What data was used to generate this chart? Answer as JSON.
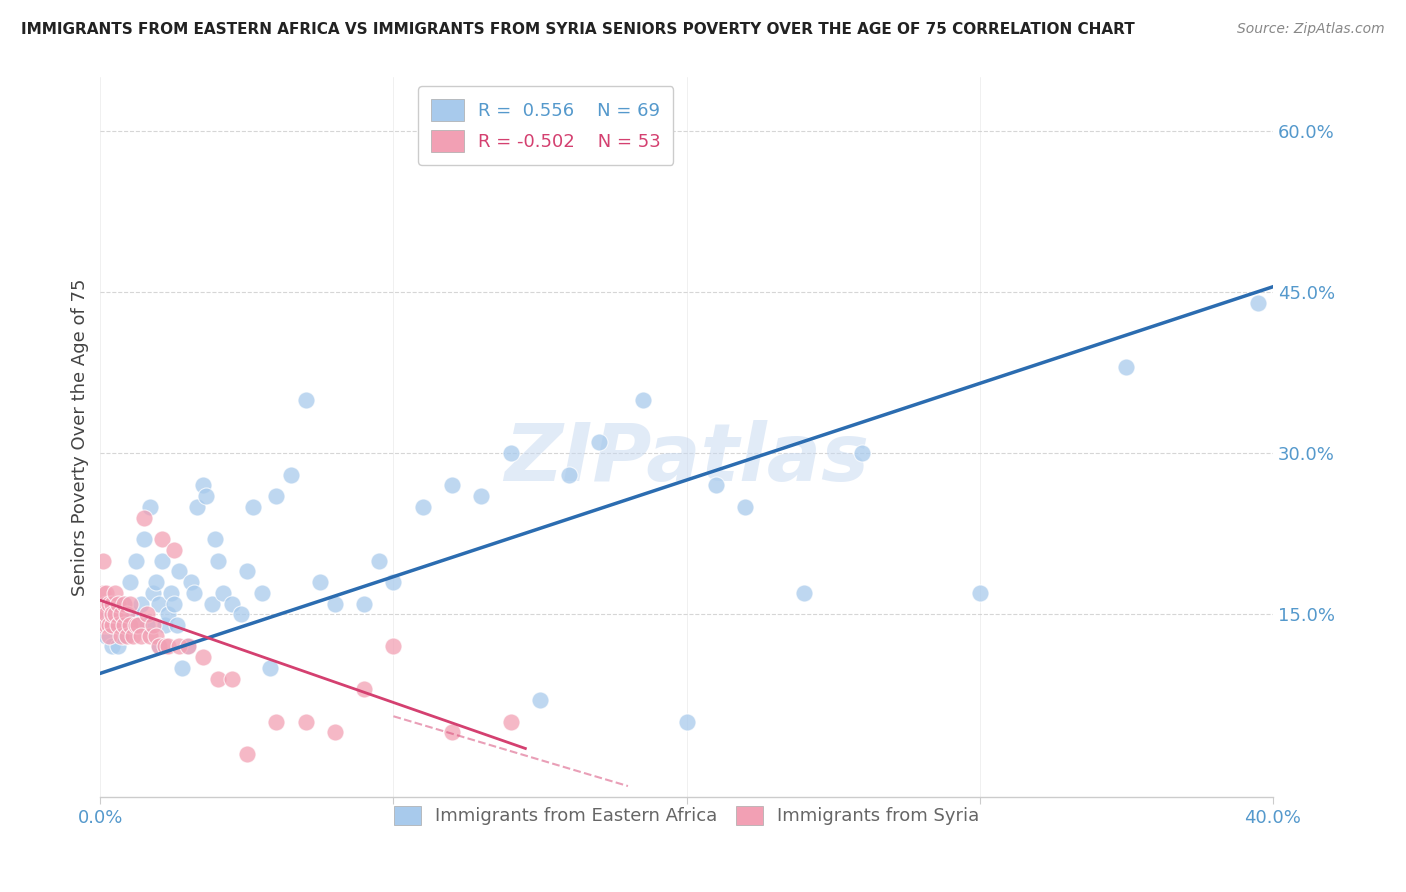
{
  "title": "IMMIGRANTS FROM EASTERN AFRICA VS IMMIGRANTS FROM SYRIA SENIORS POVERTY OVER THE AGE OF 75 CORRELATION CHART",
  "source": "Source: ZipAtlas.com",
  "ylabel": "Seniors Poverty Over the Age of 75",
  "watermark": "ZIPatlas",
  "legend_blue_r": "R =  0.556",
  "legend_blue_n": "N = 69",
  "legend_pink_r": "R = -0.502",
  "legend_pink_n": "N = 53",
  "color_blue": "#A8CAEC",
  "color_pink": "#F2A0B4",
  "color_line_blue": "#2B6CB0",
  "color_line_pink": "#D44070",
  "color_title": "#222222",
  "color_source": "#888888",
  "color_axis_labels": "#5599CC",
  "color_grid": "#CCCCCC",
  "xlim": [
    0.0,
    0.4
  ],
  "ylim": [
    -0.02,
    0.65
  ],
  "blue_line_x": [
    0.0,
    0.4
  ],
  "blue_line_y": [
    0.095,
    0.455
  ],
  "pink_line_x": [
    0.0,
    0.145
  ],
  "pink_line_y": [
    0.163,
    0.025
  ],
  "scatter_blue_x": [
    0.002,
    0.003,
    0.004,
    0.005,
    0.006,
    0.007,
    0.008,
    0.008,
    0.009,
    0.01,
    0.011,
    0.012,
    0.013,
    0.014,
    0.015,
    0.016,
    0.017,
    0.018,
    0.019,
    0.02,
    0.02,
    0.021,
    0.022,
    0.023,
    0.024,
    0.025,
    0.026,
    0.027,
    0.028,
    0.03,
    0.031,
    0.032,
    0.033,
    0.035,
    0.036,
    0.038,
    0.039,
    0.04,
    0.042,
    0.045,
    0.048,
    0.05,
    0.052,
    0.055,
    0.058,
    0.06,
    0.065,
    0.07,
    0.075,
    0.08,
    0.09,
    0.095,
    0.1,
    0.11,
    0.12,
    0.13,
    0.14,
    0.15,
    0.16,
    0.17,
    0.185,
    0.2,
    0.21,
    0.22,
    0.24,
    0.26,
    0.3,
    0.35,
    0.395
  ],
  "scatter_blue_y": [
    0.13,
    0.15,
    0.12,
    0.14,
    0.12,
    0.15,
    0.13,
    0.16,
    0.14,
    0.18,
    0.15,
    0.2,
    0.14,
    0.16,
    0.22,
    0.14,
    0.25,
    0.17,
    0.18,
    0.16,
    0.12,
    0.2,
    0.14,
    0.15,
    0.17,
    0.16,
    0.14,
    0.19,
    0.1,
    0.12,
    0.18,
    0.17,
    0.25,
    0.27,
    0.26,
    0.16,
    0.22,
    0.2,
    0.17,
    0.16,
    0.15,
    0.19,
    0.25,
    0.17,
    0.1,
    0.26,
    0.28,
    0.35,
    0.18,
    0.16,
    0.16,
    0.2,
    0.18,
    0.25,
    0.27,
    0.26,
    0.3,
    0.07,
    0.28,
    0.31,
    0.35,
    0.05,
    0.27,
    0.25,
    0.17,
    0.3,
    0.17,
    0.38,
    0.44
  ],
  "scatter_pink_x": [
    0.0005,
    0.001,
    0.001,
    0.001,
    0.002,
    0.002,
    0.002,
    0.002,
    0.003,
    0.003,
    0.003,
    0.004,
    0.004,
    0.004,
    0.005,
    0.005,
    0.006,
    0.006,
    0.007,
    0.007,
    0.008,
    0.008,
    0.009,
    0.009,
    0.01,
    0.01,
    0.011,
    0.012,
    0.013,
    0.014,
    0.015,
    0.016,
    0.017,
    0.018,
    0.019,
    0.02,
    0.021,
    0.022,
    0.023,
    0.025,
    0.027,
    0.03,
    0.035,
    0.04,
    0.045,
    0.05,
    0.06,
    0.07,
    0.08,
    0.09,
    0.1,
    0.12,
    0.14
  ],
  "scatter_pink_y": [
    0.14,
    0.2,
    0.15,
    0.17,
    0.14,
    0.16,
    0.15,
    0.17,
    0.14,
    0.16,
    0.13,
    0.16,
    0.14,
    0.15,
    0.15,
    0.17,
    0.16,
    0.14,
    0.13,
    0.15,
    0.14,
    0.16,
    0.15,
    0.13,
    0.14,
    0.16,
    0.13,
    0.14,
    0.14,
    0.13,
    0.24,
    0.15,
    0.13,
    0.14,
    0.13,
    0.12,
    0.22,
    0.12,
    0.12,
    0.21,
    0.12,
    0.12,
    0.11,
    0.09,
    0.09,
    0.02,
    0.05,
    0.05,
    0.04,
    0.08,
    0.12,
    0.04,
    0.05
  ]
}
